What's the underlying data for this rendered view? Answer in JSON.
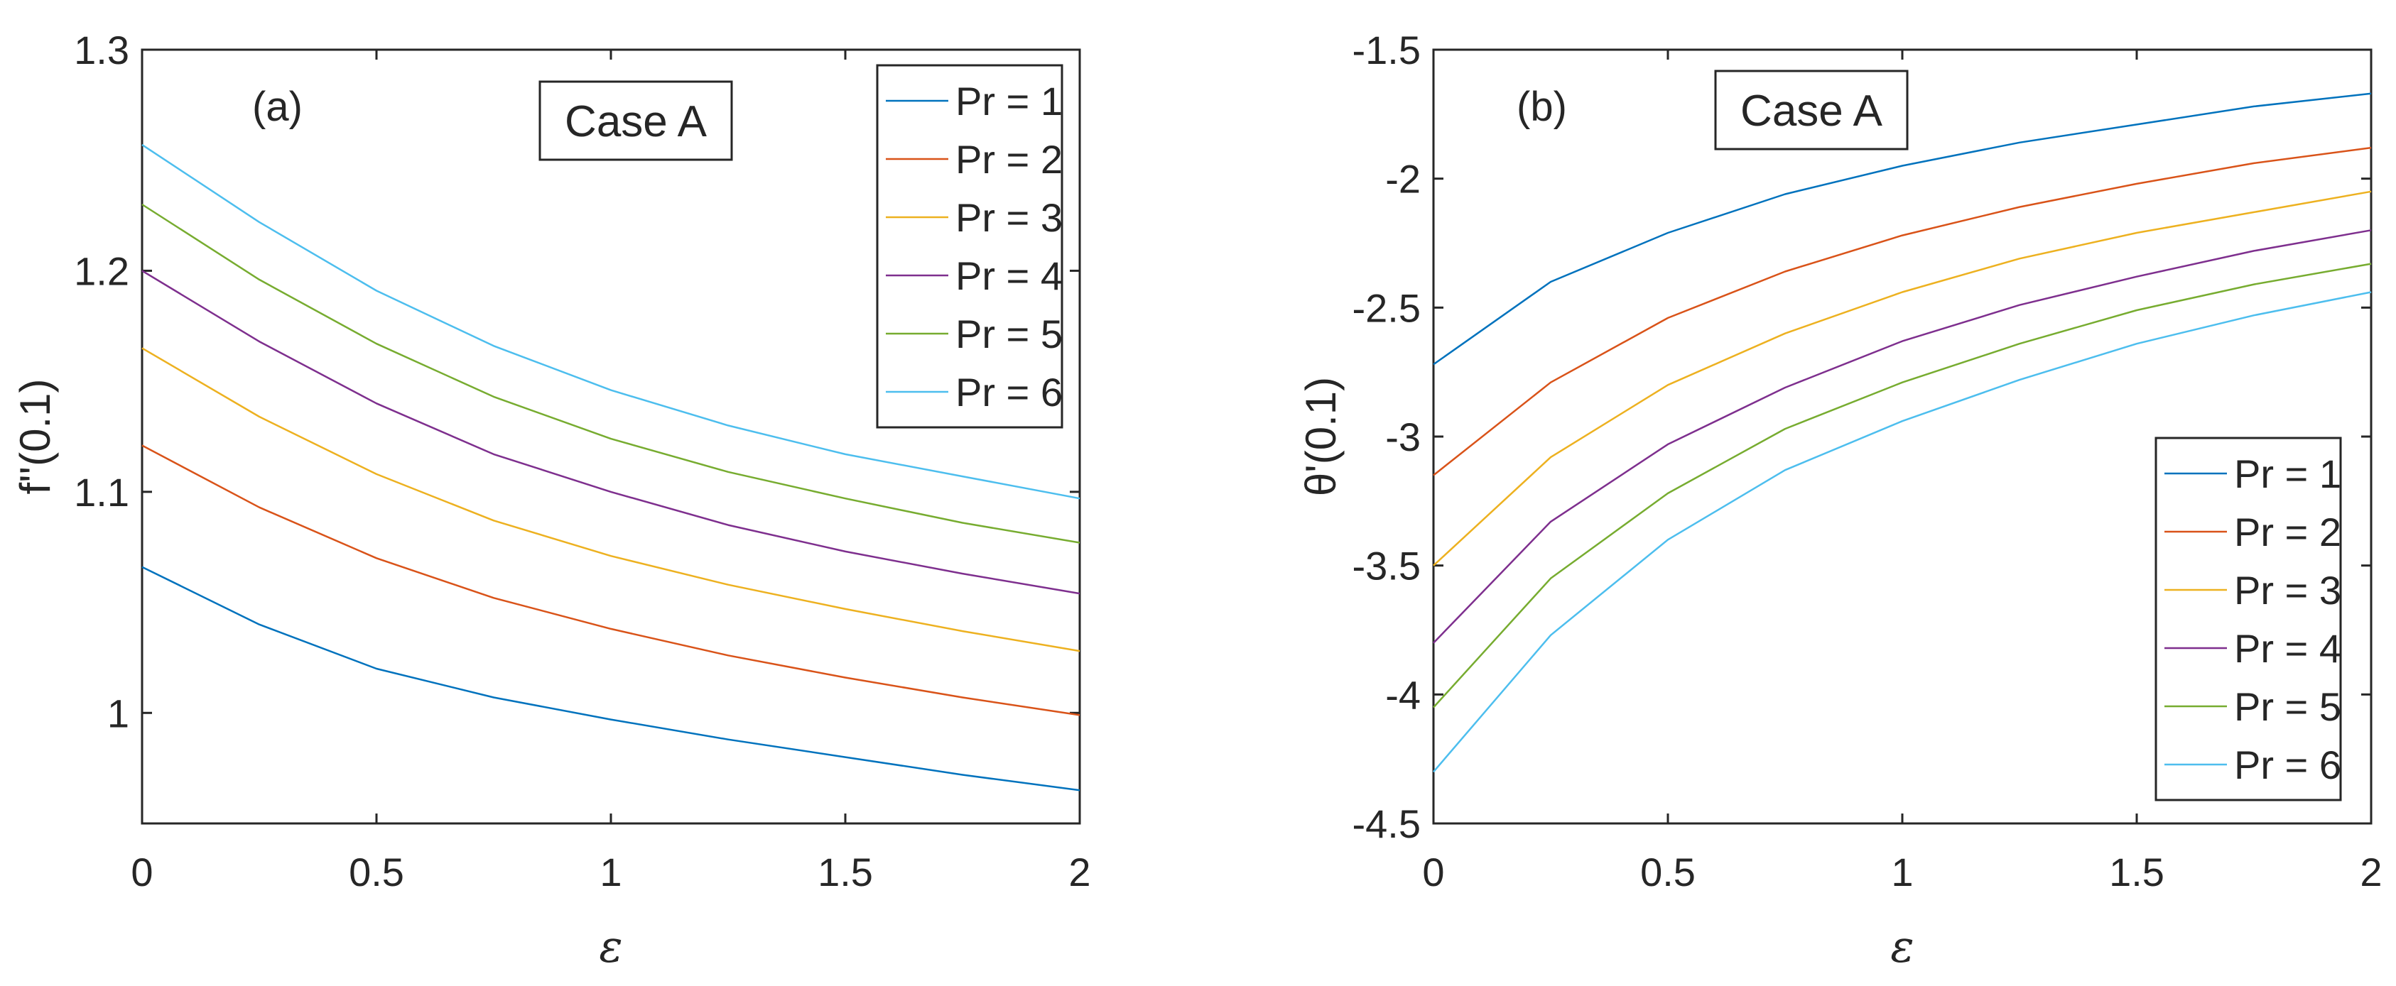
{
  "chart_data": [
    {
      "type": "line",
      "panel_label": "(a)",
      "case_label": "Case A",
      "xlabel": "ε",
      "ylabel": "f''(0.1)",
      "xlim": [
        0,
        2
      ],
      "ylim": [
        0.95,
        1.3
      ],
      "xticks": [
        0,
        0.5,
        1,
        1.5,
        2
      ],
      "xtick_labels": [
        "0",
        "0.5",
        "1",
        "1.5",
        "2"
      ],
      "yticks": [
        1,
        1.1,
        1.2,
        1.3
      ],
      "ytick_labels": [
        "1",
        "1.1",
        "1.2",
        "1.3"
      ],
      "legend_position": "top-right",
      "x": [
        0,
        0.25,
        0.5,
        0.75,
        1.0,
        1.25,
        1.5,
        1.75,
        2.0
      ],
      "series": [
        {
          "name": "Pr = 1",
          "color": "#0072BD",
          "values": [
            1.066,
            1.04,
            1.02,
            1.007,
            0.997,
            0.988,
            0.98,
            0.972,
            0.965
          ]
        },
        {
          "name": "Pr = 2",
          "color": "#D95319",
          "values": [
            1.121,
            1.093,
            1.07,
            1.052,
            1.038,
            1.026,
            1.016,
            1.007,
            0.999
          ]
        },
        {
          "name": "Pr = 3",
          "color": "#EDB120",
          "values": [
            1.165,
            1.134,
            1.108,
            1.087,
            1.071,
            1.058,
            1.047,
            1.037,
            1.028
          ]
        },
        {
          "name": "Pr = 4",
          "color": "#7E2F8E",
          "values": [
            1.2,
            1.168,
            1.14,
            1.117,
            1.1,
            1.085,
            1.073,
            1.063,
            1.054
          ]
        },
        {
          "name": "Pr = 5",
          "color": "#77AC30",
          "values": [
            1.23,
            1.196,
            1.167,
            1.143,
            1.124,
            1.109,
            1.097,
            1.086,
            1.077
          ]
        },
        {
          "name": "Pr = 6",
          "color": "#4DBEEE",
          "values": [
            1.257,
            1.222,
            1.191,
            1.166,
            1.146,
            1.13,
            1.117,
            1.107,
            1.097
          ]
        }
      ]
    },
    {
      "type": "line",
      "panel_label": "(b)",
      "case_label": "Case A",
      "xlabel": "ε",
      "ylabel": "θ'(0.1)",
      "xlim": [
        0,
        2
      ],
      "ylim": [
        -4.5,
        -1.5
      ],
      "xticks": [
        0,
        0.5,
        1,
        1.5,
        2
      ],
      "xtick_labels": [
        "0",
        "0.5",
        "1",
        "1.5",
        "2"
      ],
      "yticks": [
        -4.5,
        -4,
        -3.5,
        -3,
        -2.5,
        -2,
        -1.5
      ],
      "ytick_labels": [
        "-4.5",
        "-4",
        "-3.5",
        "-3",
        "-2.5",
        "-2",
        "-1.5"
      ],
      "legend_position": "bottom-right",
      "x": [
        0,
        0.25,
        0.5,
        0.75,
        1.0,
        1.25,
        1.5,
        1.75,
        2.0
      ],
      "series": [
        {
          "name": "Pr = 1",
          "color": "#0072BD",
          "values": [
            -2.72,
            -2.4,
            -2.21,
            -2.06,
            -1.95,
            -1.86,
            -1.79,
            -1.72,
            -1.67
          ]
        },
        {
          "name": "Pr = 2",
          "color": "#D95319",
          "values": [
            -3.15,
            -2.79,
            -2.54,
            -2.36,
            -2.22,
            -2.11,
            -2.02,
            -1.94,
            -1.88
          ]
        },
        {
          "name": "Pr = 3",
          "color": "#EDB120",
          "values": [
            -3.5,
            -3.08,
            -2.8,
            -2.6,
            -2.44,
            -2.31,
            -2.21,
            -2.13,
            -2.05
          ]
        },
        {
          "name": "Pr = 4",
          "color": "#7E2F8E",
          "values": [
            -3.8,
            -3.33,
            -3.03,
            -2.81,
            -2.63,
            -2.49,
            -2.38,
            -2.28,
            -2.2
          ]
        },
        {
          "name": "Pr = 5",
          "color": "#77AC30",
          "values": [
            -4.05,
            -3.55,
            -3.22,
            -2.97,
            -2.79,
            -2.64,
            -2.51,
            -2.41,
            -2.33
          ]
        },
        {
          "name": "Pr = 6",
          "color": "#4DBEEE",
          "values": [
            -4.3,
            -3.77,
            -3.4,
            -3.13,
            -2.94,
            -2.78,
            -2.64,
            -2.53,
            -2.44
          ]
        }
      ]
    }
  ]
}
